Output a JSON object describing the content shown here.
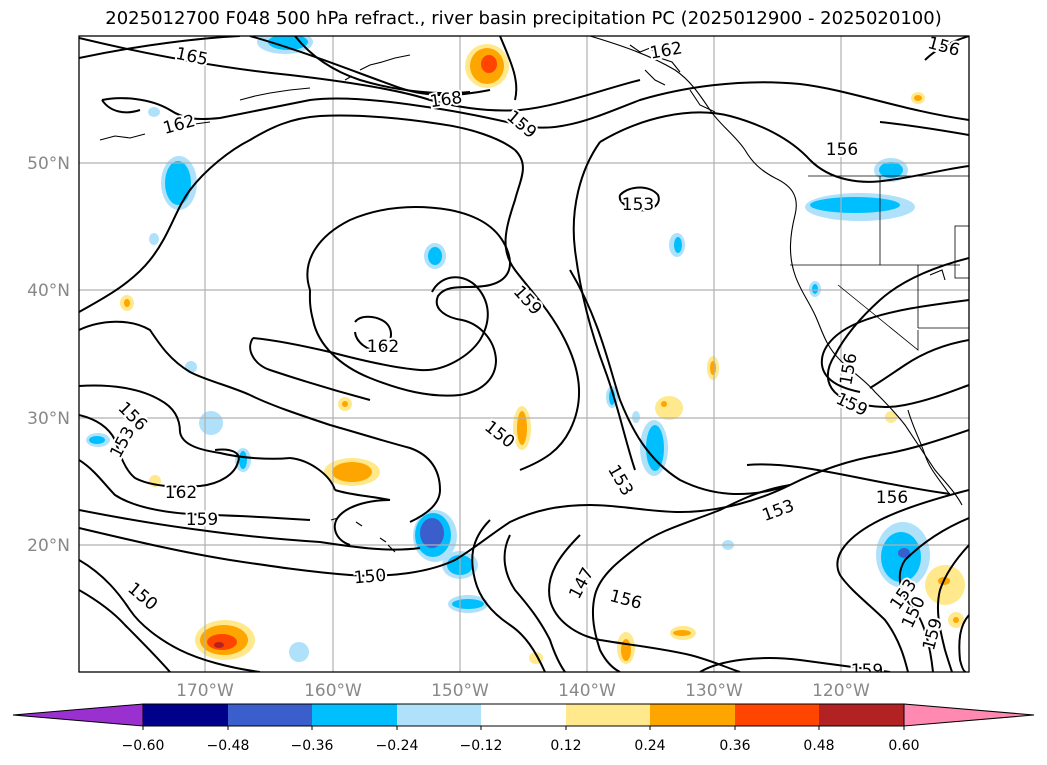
{
  "title": "2025012700 F048 500 hPa refract., river basin precipitation PC (2025012900 - 2025020100)",
  "axes": {
    "lat_labels": [
      "50°N",
      "40°N",
      "30°N",
      "20°N"
    ],
    "lon_labels": [
      "170°W",
      "160°W",
      "150°W",
      "140°W",
      "130°W",
      "120°W"
    ]
  },
  "contour_labels": [
    "165",
    "168",
    "162",
    "162",
    "159",
    "156",
    "153",
    "159",
    "162",
    "156",
    "153",
    "162",
    "159",
    "150",
    "150",
    "153",
    "153",
    "156",
    "150",
    "147",
    "156",
    "159",
    "156",
    "153",
    "150",
    "159",
    "159",
    "156"
  ],
  "colorbar": {
    "ticks": [
      "−0.60",
      "−0.48",
      "−0.36",
      "−0.24",
      "−0.12",
      "0.12",
      "0.24",
      "0.36",
      "0.48",
      "0.60"
    ],
    "colors": [
      "#9b30d0",
      "#00008b",
      "#3a5fcd",
      "#00bfff",
      "#afe2fa",
      "#ffffff",
      "#ffe98c",
      "#ffa500",
      "#ff4500",
      "#b22222",
      "#ff89b0"
    ]
  }
}
